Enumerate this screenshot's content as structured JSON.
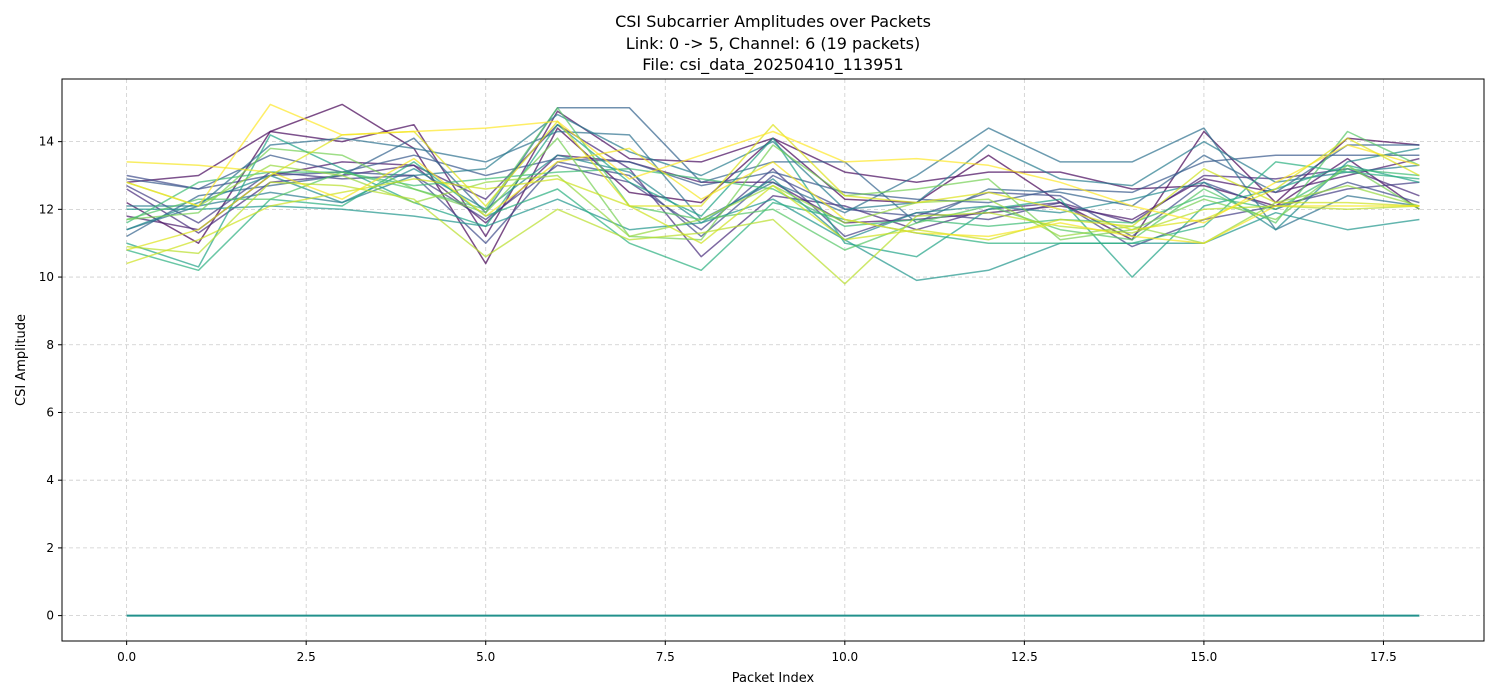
{
  "chart_data": {
    "type": "line",
    "title": [
      "CSI Subcarrier Amplitudes over Packets",
      "Link: 0 -> 5, Channel: 6 (19 packets)",
      "File: csi_data_20250410_113951"
    ],
    "xlabel": "Packet Index",
    "ylabel": "CSI Amplitude",
    "xlim": [
      -0.9,
      18.9
    ],
    "ylim": [
      -0.75,
      15.85
    ],
    "x_ticks": [
      0,
      2.5,
      5,
      7.5,
      10,
      12.5,
      15,
      17.5
    ],
    "x_tick_labels": [
      "0.0",
      "2.5",
      "5.0",
      "7.5",
      "10.0",
      "12.5",
      "15.0",
      "17.5"
    ],
    "y_ticks": [
      0,
      2,
      4,
      6,
      8,
      10,
      12,
      14
    ],
    "y_tick_labels": [
      "0",
      "2",
      "4",
      "6",
      "8",
      "10",
      "12",
      "14"
    ],
    "grid": true,
    "grid_style": "dashed",
    "colormap": "viridis",
    "x": [
      0,
      1,
      2,
      3,
      4,
      5,
      6,
      7,
      8,
      9,
      10,
      11,
      12,
      13,
      14,
      15,
      16,
      17,
      18
    ],
    "series": [
      {
        "values": [
          12.2,
          11.0,
          14.3,
          15.1,
          13.8,
          10.4,
          14.4,
          12.5,
          12.2,
          14.1,
          12.3,
          12.2,
          13.6,
          12.2,
          11.1,
          14.3,
          12.2,
          14.1,
          13.9
        ],
        "color": "#440154"
      },
      {
        "values": [
          12.8,
          13.0,
          14.3,
          14.0,
          14.5,
          11.2,
          14.9,
          13.5,
          13.4,
          14.1,
          13.1,
          12.8,
          13.1,
          13.1,
          12.6,
          12.7,
          12.1,
          13.5,
          12.0
        ],
        "color": "#46085c"
      },
      {
        "values": [
          11.8,
          11.4,
          13.0,
          13.4,
          13.3,
          11.6,
          13.6,
          13.4,
          12.8,
          12.8,
          11.6,
          11.7,
          11.9,
          12.1,
          11.7,
          12.9,
          12.5,
          13.0,
          13.5
        ],
        "color": "#481769"
      },
      {
        "values": [
          12.6,
          11.3,
          12.8,
          13.0,
          13.3,
          12.3,
          14.5,
          13.2,
          10.6,
          12.4,
          12.1,
          11.4,
          12.0,
          12.2,
          11.6,
          13.0,
          12.9,
          13.2,
          12.4
        ],
        "color": "#472a7a"
      },
      {
        "values": [
          12.7,
          11.6,
          13.1,
          12.9,
          13.0,
          11.7,
          13.3,
          12.8,
          11.4,
          13.2,
          11.2,
          11.9,
          11.7,
          12.2,
          10.9,
          11.7,
          12.1,
          12.6,
          12.8
        ],
        "color": "#433d84"
      },
      {
        "values": [
          13.0,
          12.6,
          13.0,
          13.1,
          13.0,
          11.0,
          13.4,
          13.0,
          11.2,
          13.0,
          12.0,
          11.8,
          12.5,
          12.4,
          11.2,
          12.8,
          12.0,
          12.8,
          12.2
        ],
        "color": "#3e4c8a"
      },
      {
        "values": [
          12.9,
          12.6,
          13.6,
          13.1,
          13.6,
          13.0,
          13.5,
          13.4,
          12.7,
          13.1,
          12.5,
          12.3,
          12.2,
          12.6,
          12.5,
          13.4,
          13.6,
          13.6,
          13.6
        ],
        "color": "#38598c"
      },
      {
        "values": [
          11.2,
          12.4,
          12.7,
          13.0,
          14.1,
          11.9,
          15.0,
          15.0,
          12.8,
          13.4,
          13.4,
          11.6,
          12.6,
          12.5,
          12.1,
          13.6,
          12.5,
          13.9,
          13.9
        ],
        "color": "#33638d"
      },
      {
        "values": [
          11.4,
          12.1,
          13.9,
          14.1,
          13.8,
          13.4,
          14.3,
          14.2,
          11.7,
          12.8,
          11.9,
          13.0,
          14.4,
          13.4,
          13.4,
          14.4,
          11.4,
          12.4,
          12.1
        ],
        "color": "#2d708e"
      },
      {
        "values": [
          12.1,
          12.1,
          12.5,
          12.2,
          13.0,
          13.2,
          14.8,
          13.7,
          13.0,
          14.0,
          12.0,
          12.2,
          13.9,
          12.9,
          12.7,
          14.0,
          12.8,
          13.1,
          13.3
        ],
        "color": "#287c8e"
      },
      {
        "values": [
          11.4,
          12.2,
          13.0,
          12.2,
          13.2,
          12.0,
          13.6,
          13.1,
          11.6,
          12.9,
          11.1,
          11.9,
          12.1,
          11.9,
          12.3,
          12.8,
          11.4,
          13.4,
          13.8
        ],
        "color": "#23898e"
      },
      {
        "values": [
          12.0,
          12.0,
          12.1,
          12.0,
          11.8,
          11.5,
          12.3,
          11.4,
          11.6,
          12.3,
          11.1,
          9.9,
          10.2,
          11.0,
          11.0,
          11.0,
          11.9,
          11.4,
          11.7
        ],
        "color": "#1f968b"
      },
      {
        "values": [
          11.0,
          10.3,
          14.2,
          13.2,
          12.2,
          11.5,
          14.5,
          12.8,
          11.8,
          14.1,
          11.0,
          10.6,
          12.0,
          12.3,
          10.0,
          12.1,
          12.6,
          13.3,
          12.8
        ],
        "color": "#20a386"
      },
      {
        "values": [
          10.8,
          10.2,
          12.3,
          12.1,
          13.4,
          11.8,
          12.6,
          11.0,
          10.2,
          12.2,
          11.7,
          11.3,
          11.0,
          11.0,
          11.0,
          11.5,
          13.4,
          13.1,
          12.9
        ],
        "color": "#29af7f"
      },
      {
        "values": [
          11.6,
          12.8,
          13.1,
          13.1,
          12.7,
          12.9,
          13.1,
          13.2,
          12.9,
          12.6,
          11.5,
          11.7,
          11.5,
          11.7,
          11.6,
          12.4,
          12.0,
          13.2,
          13.0
        ],
        "color": "#3dbc74"
      },
      {
        "values": [
          11.7,
          12.3,
          12.3,
          13.1,
          12.6,
          12.0,
          15.0,
          12.1,
          11.7,
          12.0,
          10.8,
          11.6,
          12.1,
          11.4,
          11.1,
          12.6,
          11.6,
          14.3,
          13.3
        ],
        "color": "#56c667"
      },
      {
        "values": [
          11.7,
          11.9,
          13.8,
          13.6,
          12.6,
          11.9,
          14.1,
          11.2,
          11.1,
          13.9,
          12.4,
          12.6,
          12.9,
          11.1,
          11.4,
          12.3,
          11.7,
          13.3,
          12.0
        ],
        "color": "#75d054"
      },
      {
        "values": [
          12.8,
          12.1,
          13.3,
          13.0,
          12.2,
          12.8,
          13.0,
          11.2,
          11.7,
          12.7,
          11.6,
          12.2,
          12.3,
          11.2,
          11.5,
          11.0,
          12.2,
          12.7,
          12.1
        ],
        "color": "#95d840"
      },
      {
        "values": [
          10.9,
          10.7,
          12.8,
          12.7,
          12.3,
          10.6,
          12.0,
          11.1,
          11.3,
          11.7,
          9.8,
          11.8,
          11.9,
          11.5,
          11.3,
          12.0,
          12.1,
          12.0,
          12.1
        ],
        "color": "#b8de29"
      },
      {
        "values": [
          10.4,
          11.1,
          12.1,
          12.5,
          12.9,
          12.6,
          12.9,
          12.1,
          11.0,
          12.7,
          11.1,
          11.4,
          11.1,
          11.7,
          11.5,
          13.2,
          12.2,
          12.2,
          12.1
        ],
        "color": "#cde11d"
      },
      {
        "values": [
          10.8,
          11.4,
          13.0,
          14.2,
          14.3,
          12.1,
          14.6,
          12.1,
          12.1,
          14.5,
          12.4,
          12.2,
          12.5,
          12.0,
          11.4,
          11.7,
          12.6,
          14.1,
          13.0
        ],
        "color": "#dde318"
      },
      {
        "values": [
          12.8,
          12.1,
          15.1,
          14.2,
          14.3,
          14.4,
          14.6,
          12.9,
          13.6,
          14.3,
          13.4,
          13.5,
          13.3,
          12.8,
          12.1,
          11.6,
          12.8,
          13.9,
          13.3
        ],
        "color": "#fde725"
      },
      {
        "values": [
          13.4,
          13.3,
          13.1,
          12.3,
          13.5,
          11.8,
          13.4,
          13.8,
          12.3,
          13.4,
          11.7,
          11.3,
          11.2,
          11.6,
          11.2,
          11.0,
          12.1,
          12.1,
          12.1
        ],
        "color": "#f5e61f"
      },
      {
        "values": [
          0,
          0,
          0,
          0,
          0,
          0,
          0,
          0,
          0,
          0,
          0,
          0,
          0,
          0,
          0,
          0,
          0,
          0,
          0
        ],
        "color": "#21918c"
      }
    ]
  }
}
